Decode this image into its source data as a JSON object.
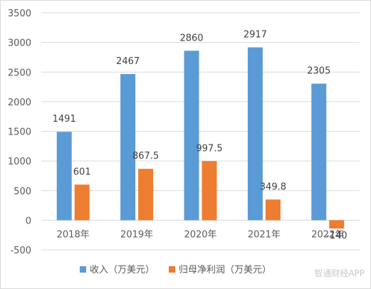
{
  "chart_data": {
    "type": "bar",
    "categories": [
      "2018年",
      "2019年",
      "2020年",
      "2021年",
      "2022年"
    ],
    "series": [
      {
        "name": "收入（万美元）",
        "values": [
          1491,
          2467,
          2860,
          2917,
          2305
        ],
        "color": "#5b9bd5"
      },
      {
        "name": "归母净利润（万美元）",
        "values": [
          601,
          867.5,
          997.5,
          349.8,
          -140
        ],
        "color": "#ed7d31"
      }
    ],
    "ylim": [
      -500,
      3500
    ],
    "yticks": [
      -500,
      0,
      500,
      1000,
      1500,
      2000,
      2500,
      3000,
      3500
    ],
    "grid": true,
    "legend": "bottom"
  },
  "watermark": "智通财经APP",
  "colors": {
    "grid": "#d9d9d9",
    "axis_text": "#595959",
    "label_text": "#404040"
  }
}
